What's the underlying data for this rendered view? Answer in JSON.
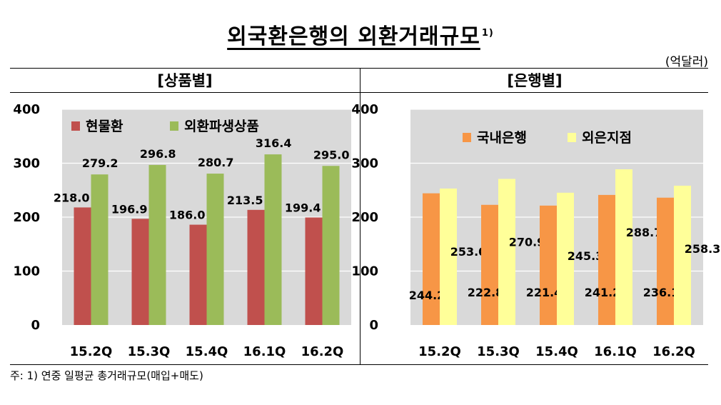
{
  "title": "외국환은행의 외환거래규모",
  "title_sup": "1)",
  "unit": "(억달러)",
  "footnote": "주: 1) 연중 일평균 총거래규모(매입+매도)",
  "chart_data": [
    {
      "type": "bar",
      "title": "[상품별]",
      "categories": [
        "15.2Q",
        "15.3Q",
        "15.4Q",
        "16.1Q",
        "16.2Q"
      ],
      "series": [
        {
          "name": "현물환",
          "values": [
            218.0,
            196.9,
            186.0,
            213.5,
            199.4
          ],
          "color": "#C0504D"
        },
        {
          "name": "외환파생상품",
          "values": [
            279.2,
            296.8,
            280.7,
            316.4,
            295.0
          ],
          "color": "#9BBB59"
        }
      ],
      "ylim": [
        0,
        400
      ],
      "yticks": [
        0,
        100,
        200,
        300,
        400
      ],
      "grid": true,
      "legend": "top-left",
      "plot_background": "#D9D9D9"
    },
    {
      "type": "bar",
      "title": "[은행별]",
      "categories": [
        "15.2Q",
        "15.3Q",
        "15.4Q",
        "16.1Q",
        "16.2Q"
      ],
      "series": [
        {
          "name": "국내은행",
          "values": [
            244.2,
            222.8,
            221.4,
            241.2,
            236.1
          ],
          "color": "#F79646"
        },
        {
          "name": "외은지점",
          "values": [
            253.0,
            270.9,
            245.3,
            288.7,
            258.3
          ],
          "color": "#FFFF99"
        }
      ],
      "ylim": [
        0,
        400
      ],
      "yticks": [
        0,
        100,
        200,
        300,
        400
      ],
      "grid": true,
      "legend": "top-left",
      "plot_background": "#D9D9D9"
    }
  ]
}
